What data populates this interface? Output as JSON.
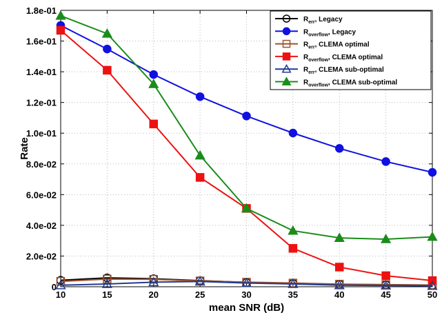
{
  "chart_data": {
    "type": "line",
    "xlabel": "mean SNR (dB)",
    "ylabel": "Rate",
    "x": [
      10,
      15,
      20,
      25,
      30,
      35,
      40,
      45,
      50
    ],
    "xticks": [
      "10",
      "15",
      "20",
      "25",
      "30",
      "35",
      "40",
      "45",
      "50"
    ],
    "yticks": [
      {
        "value": 0,
        "label": "0"
      },
      {
        "value": 0.02,
        "label": "2.0e-02"
      },
      {
        "value": 0.04,
        "label": "4.0e-02"
      },
      {
        "value": 0.06,
        "label": "6.0e-02"
      },
      {
        "value": 0.08,
        "label": "8.0e-02"
      },
      {
        "value": 0.1,
        "label": "1.0e-01"
      },
      {
        "value": 0.12,
        "label": "1.2e-01"
      },
      {
        "value": 0.14,
        "label": "1.4e-01"
      },
      {
        "value": 0.16,
        "label": "1.6e-01"
      },
      {
        "value": 0.18,
        "label": "1.8e-01"
      }
    ],
    "xlim": [
      10,
      50
    ],
    "ylim": [
      0,
      0.18
    ],
    "grid": true,
    "legend_position": "top-right",
    "series": [
      {
        "base": "R",
        "sub": "err",
        "suffix": ", Legacy",
        "color": "#000000",
        "marker": "circle",
        "filled": false,
        "values": [
          0.0042,
          0.0058,
          0.0052,
          0.004,
          0.0028,
          0.0022,
          0.0016,
          0.0013,
          0.001
        ]
      },
      {
        "base": "R",
        "sub": "overflow",
        "suffix": ", Legacy",
        "color": "#1010e0",
        "marker": "circle",
        "filled": true,
        "values": [
          0.1702,
          0.1548,
          0.1382,
          0.1238,
          0.1112,
          0.1001,
          0.0901,
          0.0815,
          0.0745
        ]
      },
      {
        "base": "R",
        "sub": "err",
        "suffix": ", CLEMA optimal",
        "color": "#a0522d",
        "marker": "square",
        "filled": false,
        "values": [
          0.0035,
          0.005,
          0.0048,
          0.0038,
          0.003,
          0.0024,
          0.0017,
          0.0014,
          0.0011
        ]
      },
      {
        "base": "R",
        "sub": "overflow",
        "suffix": ", CLEMA optimal",
        "color": "#ee1111",
        "marker": "square",
        "filled": true,
        "values": [
          0.167,
          0.141,
          0.106,
          0.0712,
          0.051,
          0.025,
          0.0128,
          0.0072,
          0.004
        ]
      },
      {
        "base": "R",
        "sub": "err",
        "suffix": ", CLEMA sub-optimal",
        "color": "#1f3a93",
        "marker": "triangle",
        "filled": false,
        "values": [
          0.001,
          0.0018,
          0.003,
          0.0034,
          0.0024,
          0.0018,
          0.001,
          0.0008,
          0.0006
        ]
      },
      {
        "base": "R",
        "sub": "overflow",
        "suffix": ", CLEMA sub-optimal",
        "color": "#1a8c1a",
        "marker": "triangle",
        "filled": true,
        "values": [
          0.1765,
          0.1648,
          0.132,
          0.0855,
          0.051,
          0.0365,
          0.0318,
          0.031,
          0.0325
        ]
      }
    ]
  }
}
